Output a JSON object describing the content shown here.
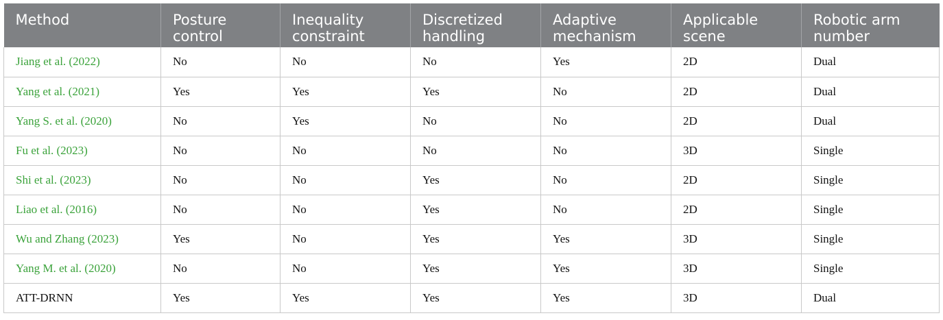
{
  "table": {
    "headers": [
      [
        "Method"
      ],
      [
        "Posture",
        "control"
      ],
      [
        "Inequality",
        "constraint"
      ],
      [
        "Discretized",
        "handling"
      ],
      [
        "Adaptive",
        "mechanism"
      ],
      [
        "Applicable",
        "scene"
      ],
      [
        "Robotic arm",
        "number"
      ]
    ],
    "rows": [
      {
        "author": "Jiang et al. (",
        "year": "2022",
        "close": ")",
        "posture": "No",
        "inequality": "No",
        "discretized": "No",
        "adaptive": "Yes",
        "scene": "2D",
        "arm": "Dual"
      },
      {
        "author": "Yang et al. (",
        "year": "2021",
        "close": ")",
        "posture": "Yes",
        "inequality": "Yes",
        "discretized": "Yes",
        "adaptive": "No",
        "scene": "2D",
        "arm": "Dual"
      },
      {
        "author": "Yang S. et al. (",
        "year": "2020",
        "close": ")",
        "posture": "No",
        "inequality": "Yes",
        "discretized": "No",
        "adaptive": "No",
        "scene": "2D",
        "arm": "Dual"
      },
      {
        "author": "Fu et al. (",
        "year": "2023",
        "close": ")",
        "posture": "No",
        "inequality": "No",
        "discretized": "No",
        "adaptive": "No",
        "scene": "3D",
        "arm": "Single"
      },
      {
        "author": "Shi et al. (",
        "year": "2023",
        "close": ")",
        "posture": "No",
        "inequality": "No",
        "discretized": "Yes",
        "adaptive": "No",
        "scene": "2D",
        "arm": "Single"
      },
      {
        "author": "Liao et al. (",
        "year": "2016",
        "close": ")",
        "posture": "No",
        "inequality": "No",
        "discretized": "Yes",
        "adaptive": "No",
        "scene": "2D",
        "arm": "Single"
      },
      {
        "author": "Wu and Zhang (",
        "year": "2023",
        "close": ")",
        "posture": "Yes",
        "inequality": "No",
        "discretized": "Yes",
        "adaptive": "Yes",
        "scene": "3D",
        "arm": "Single"
      },
      {
        "author": "Yang M. et al. (",
        "year": "2020",
        "close": ")",
        "posture": "No",
        "inequality": "No",
        "discretized": "Yes",
        "adaptive": "Yes",
        "scene": "3D",
        "arm": "Single"
      },
      {
        "method": "ATT-DRNN",
        "posture": "Yes",
        "inequality": "Yes",
        "discretized": "Yes",
        "adaptive": "Yes",
        "scene": "3D",
        "arm": "Dual"
      }
    ]
  },
  "colors": {
    "header_bg": "#7f8184",
    "header_text": "#ffffff",
    "link": "#3aa23a",
    "grid": "#c8c8c8"
  }
}
